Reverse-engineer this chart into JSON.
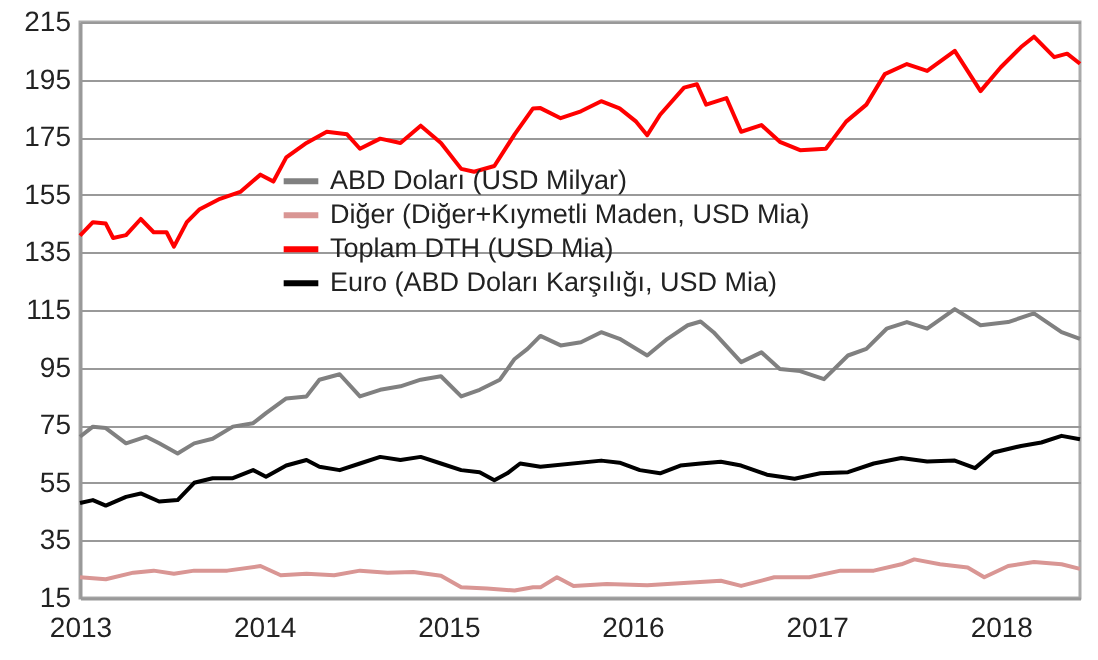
{
  "chart_data": {
    "type": "line",
    "xlim": [
      2013,
      2018.43
    ],
    "xticks": [
      2013,
      2014,
      2015,
      2016,
      2017,
      2018
    ],
    "ylim": [
      15,
      215
    ],
    "yticks": [
      15,
      35,
      55,
      75,
      95,
      115,
      135,
      155,
      175,
      195,
      215
    ],
    "grid": "y",
    "legend": "left",
    "marker": "none",
    "line_style": "solid",
    "series": [
      {
        "name": "ABD Doları (USD Milyar)",
        "color": "#808080",
        "x": [
          2013.0,
          2013.07,
          2013.14,
          2013.25,
          2013.36,
          2013.43,
          2013.53,
          2013.62,
          2013.72,
          2013.83,
          2013.94,
          2014.01,
          2014.12,
          2014.23,
          2014.3,
          2014.41,
          2014.52,
          2014.63,
          2014.74,
          2014.85,
          2014.96,
          2015.07,
          2015.17,
          2015.28,
          2015.36,
          2015.43,
          2015.5,
          2015.61,
          2015.72,
          2015.83,
          2015.93,
          2016.08,
          2016.19,
          2016.3,
          2016.37,
          2016.44,
          2016.59,
          2016.7,
          2016.8,
          2016.91,
          2017.04,
          2017.17,
          2017.27,
          2017.38,
          2017.49,
          2017.6,
          2017.75,
          2017.89,
          2018.04,
          2018.18,
          2018.33,
          2018.43
        ],
        "values": [
          71,
          74.5,
          74,
          68.7,
          71,
          68.7,
          65.2,
          68.7,
          70.3,
          74.5,
          75.7,
          79.2,
          84.3,
          85,
          90.8,
          92.7,
          85,
          87.3,
          88.5,
          90.8,
          92,
          85,
          87.3,
          90.8,
          98,
          101.5,
          106,
          102.7,
          103.8,
          107.3,
          105,
          99.2,
          105,
          109.7,
          111,
          107.3,
          96.9,
          100.3,
          94.5,
          93.8,
          91,
          99.2,
          101.5,
          108.5,
          110.8,
          108.5,
          115.3,
          109.7,
          110.8,
          113.8,
          107.3,
          105
        ]
      },
      {
        "name": "Diğer (Diğer+Kıymetli Maden, USD Mia)",
        "color": "#d99694",
        "x": [
          2013.0,
          2013.14,
          2013.29,
          2013.4,
          2013.51,
          2013.62,
          2013.8,
          2013.98,
          2014.09,
          2014.23,
          2014.38,
          2014.52,
          2014.67,
          2014.81,
          2014.96,
          2015.07,
          2015.21,
          2015.36,
          2015.46,
          2015.5,
          2015.59,
          2015.68,
          2015.86,
          2016.08,
          2016.3,
          2016.48,
          2016.59,
          2016.77,
          2016.96,
          2017.13,
          2017.31,
          2017.46,
          2017.53,
          2017.67,
          2017.82,
          2017.91,
          2018.04,
          2018.18,
          2018.33,
          2018.43
        ],
        "values": [
          22.2,
          21.5,
          23.8,
          24.5,
          23.4,
          24.5,
          24.5,
          26.1,
          22.9,
          23.4,
          22.9,
          24.5,
          23.8,
          24,
          22.7,
          18.7,
          18.3,
          17.6,
          18.7,
          18.7,
          22.2,
          19.2,
          19.9,
          19.4,
          20.3,
          21,
          19.2,
          22.2,
          22.2,
          24.5,
          24.5,
          26.7,
          28.4,
          26.7,
          25.6,
          22.2,
          26.1,
          27.5,
          26.7,
          25.1
        ]
      },
      {
        "name": "Toplam DTH (USD Mia)",
        "color": "#ff0000",
        "x": [
          2013.0,
          2013.07,
          2013.14,
          2013.18,
          2013.25,
          2013.33,
          2013.4,
          2013.47,
          2013.51,
          2013.58,
          2013.65,
          2013.76,
          2013.87,
          2013.98,
          2014.05,
          2014.12,
          2014.23,
          2014.34,
          2014.45,
          2014.52,
          2014.63,
          2014.74,
          2014.85,
          2014.96,
          2015.07,
          2015.14,
          2015.25,
          2015.36,
          2015.46,
          2015.5,
          2015.61,
          2015.72,
          2015.83,
          2015.93,
          2016.02,
          2016.08,
          2016.15,
          2016.28,
          2016.35,
          2016.4,
          2016.51,
          2016.59,
          2016.7,
          2016.8,
          2016.91,
          2017.05,
          2017.16,
          2017.27,
          2017.37,
          2017.49,
          2017.6,
          2017.75,
          2017.89,
          2018.0,
          2018.11,
          2018.18,
          2018.29,
          2018.36,
          2018.43
        ],
        "values": [
          140.8,
          145.5,
          145,
          140,
          141,
          146.6,
          142,
          142,
          137,
          145.5,
          150,
          153.6,
          156,
          162,
          159.6,
          168,
          173,
          176.9,
          176,
          171,
          174.5,
          173,
          179,
          173,
          164,
          163,
          165,
          176,
          185,
          185.1,
          181.6,
          184,
          187.5,
          185,
          180.4,
          175.7,
          182.8,
          192.2,
          193.4,
          186.3,
          188.6,
          176.9,
          179.2,
          173.4,
          170.5,
          171,
          180.4,
          186.3,
          196.9,
          200.4,
          198,
          205,
          191,
          199.3,
          206.3,
          209.9,
          202.8,
          204,
          200.5
        ]
      },
      {
        "name": "Euro (ABD Doları Karşılığı, USD Mia)",
        "color": "#000000",
        "x": [
          2013.0,
          2013.07,
          2013.14,
          2013.25,
          2013.33,
          2013.43,
          2013.53,
          2013.62,
          2013.72,
          2013.83,
          2013.94,
          2014.01,
          2014.12,
          2014.23,
          2014.3,
          2014.41,
          2014.52,
          2014.63,
          2014.74,
          2014.85,
          2014.96,
          2015.07,
          2015.17,
          2015.25,
          2015.32,
          2015.39,
          2015.5,
          2015.83,
          2015.93,
          2016.04,
          2016.15,
          2016.26,
          2016.37,
          2016.48,
          2016.59,
          2016.73,
          2016.88,
          2017.02,
          2017.17,
          2017.31,
          2017.46,
          2017.6,
          2017.75,
          2017.86,
          2017.96,
          2018.11,
          2018.22,
          2018.33,
          2018.43
        ],
        "values": [
          48,
          49,
          47.1,
          50.1,
          51.3,
          48.5,
          49,
          55,
          56.6,
          56.6,
          59.4,
          57.1,
          61,
          62.9,
          60.6,
          59.4,
          61.7,
          64,
          62.9,
          64,
          61.7,
          59.4,
          58.7,
          55.9,
          58.3,
          61.7,
          60.6,
          62.7,
          62,
          59.4,
          58.3,
          61,
          61.7,
          62.3,
          61,
          57.8,
          56.4,
          58.3,
          58.7,
          61.7,
          63.6,
          62.4,
          62.7,
          60.1,
          65.5,
          67.8,
          69,
          71.3,
          70.1
        ]
      }
    ]
  }
}
